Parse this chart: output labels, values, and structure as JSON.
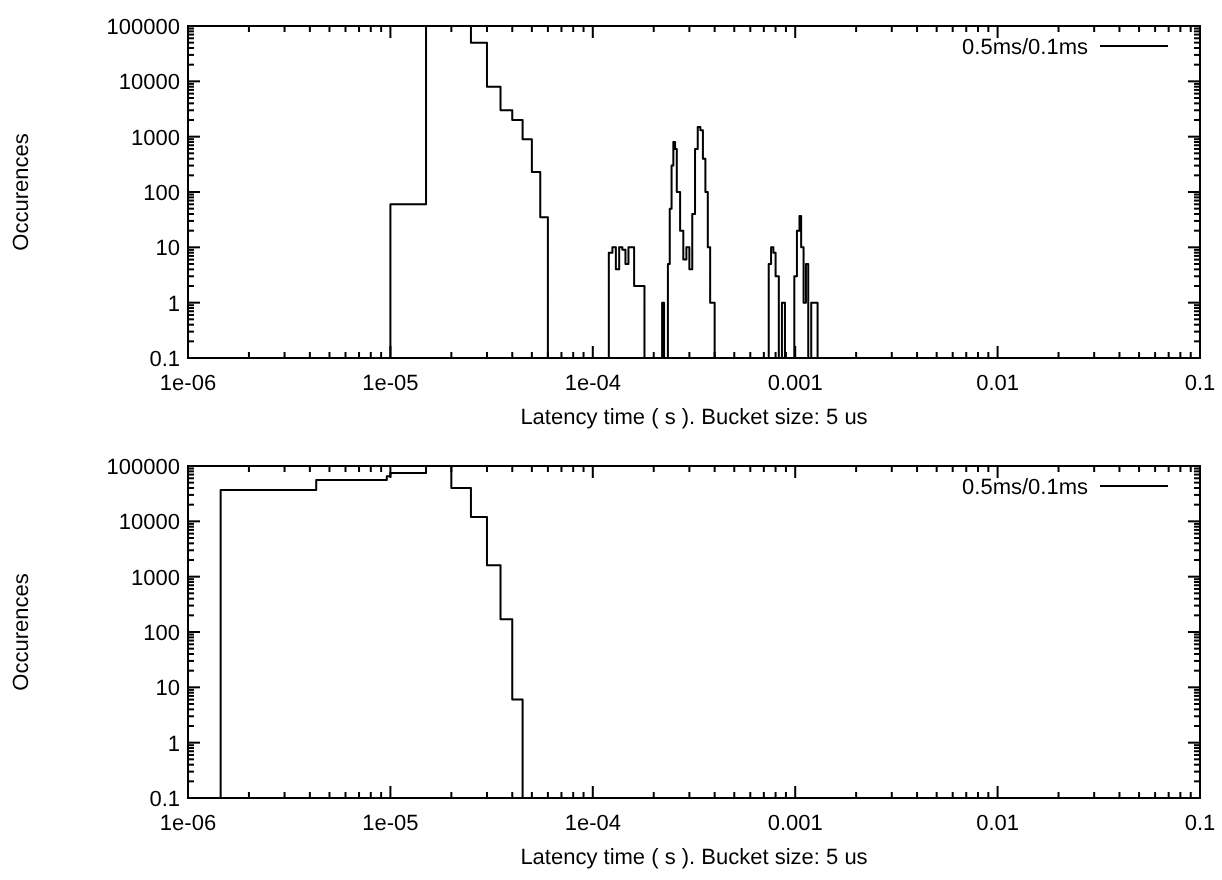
{
  "chart_data": [
    {
      "type": "step",
      "xlabel": "Latency time ( s ). Bucket size: 5 us",
      "ylabel": "Occurences",
      "log": "xy",
      "legend": "top right",
      "grid": false,
      "xlim": [
        1e-06,
        0.1
      ],
      "xticks": [
        {
          "value": 1e-06,
          "label": "1e-06"
        },
        {
          "value": 1e-05,
          "label": "1e-05"
        },
        {
          "value": 0.0001,
          "label": "1e-04"
        },
        0.001,
        0.01,
        0.1
      ],
      "ylim": [
        0.1,
        100000
      ],
      "yticks": [
        0.1,
        1,
        10,
        100,
        1000,
        10000,
        100000
      ],
      "series": [
        {
          "name": "0.5ms/0.1ms",
          "color": "#000000",
          "x": [
            1e-05,
            1e-05,
            1.5e-05,
            2.5e-05,
            3e-05,
            3.5e-05,
            4e-05,
            4.5e-05,
            5e-05,
            5.5e-05,
            6e-05,
            0.00012,
            0.000125,
            0.00013,
            0.000135,
            0.00014,
            0.000145,
            0.00015,
            0.00016,
            0.00018,
            0.00022,
            0.000225,
            0.000235,
            0.00024,
            0.000245,
            0.00025,
            0.000255,
            0.00026,
            0.00027,
            0.00028,
            0.00029,
            0.0003,
            0.00031,
            0.00032,
            0.00033,
            0.00034,
            0.00035,
            0.00036,
            0.00037,
            0.00038,
            0.0004,
            0.00074,
            0.00076,
            0.00078,
            0.0008,
            0.00083,
            0.00086,
            0.00089,
            0.00099,
            0.00102,
            0.00105,
            0.00107,
            0.0011,
            0.00113,
            0.00116,
            0.0012,
            0.00125,
            0.00129
          ],
          "values": [
            0.1,
            60,
            100000,
            50000,
            8000,
            3000,
            2000,
            900,
            230,
            35,
            0.1,
            8,
            10,
            4,
            10,
            9,
            5,
            10,
            2,
            0.1,
            1,
            0.1,
            5,
            50,
            300,
            800,
            600,
            100,
            20,
            6,
            10,
            4,
            40,
            600,
            1500,
            1300,
            400,
            100,
            10,
            1,
            0.1,
            5,
            10,
            8,
            3,
            0.1,
            1,
            0.1,
            3,
            20,
            37,
            10,
            1,
            5,
            0.1,
            1,
            1,
            0.1
          ]
        }
      ]
    },
    {
      "type": "step",
      "xlabel": "Latency time ( s ). Bucket size: 5 us",
      "ylabel": "Occurences",
      "log": "xy",
      "legend": "top right",
      "grid": false,
      "xlim": [
        1e-06,
        0.1
      ],
      "xticks": [
        {
          "value": 1e-06,
          "label": "1e-06"
        },
        {
          "value": 1e-05,
          "label": "1e-05"
        },
        {
          "value": 0.0001,
          "label": "1e-04"
        },
        0.001,
        0.01,
        0.1
      ],
      "ylim": [
        0.1,
        100000
      ],
      "yticks": [
        0.1,
        1,
        10,
        100,
        1000,
        10000,
        100000
      ],
      "series": [
        {
          "name": "0.5ms/0.1ms",
          "color": "#000000",
          "x": [
            1.45e-06,
            1.45e-06,
            4.3e-06,
            9.6e-06,
            1e-05,
            1.5e-05,
            2e-05,
            2.5e-05,
            3e-05,
            3.5e-05,
            4e-05,
            4.5e-05
          ],
          "values": [
            0.1,
            37000,
            56000,
            65000,
            75000,
            100000,
            40000,
            12000,
            1600,
            170,
            6,
            0.1
          ]
        }
      ]
    }
  ]
}
